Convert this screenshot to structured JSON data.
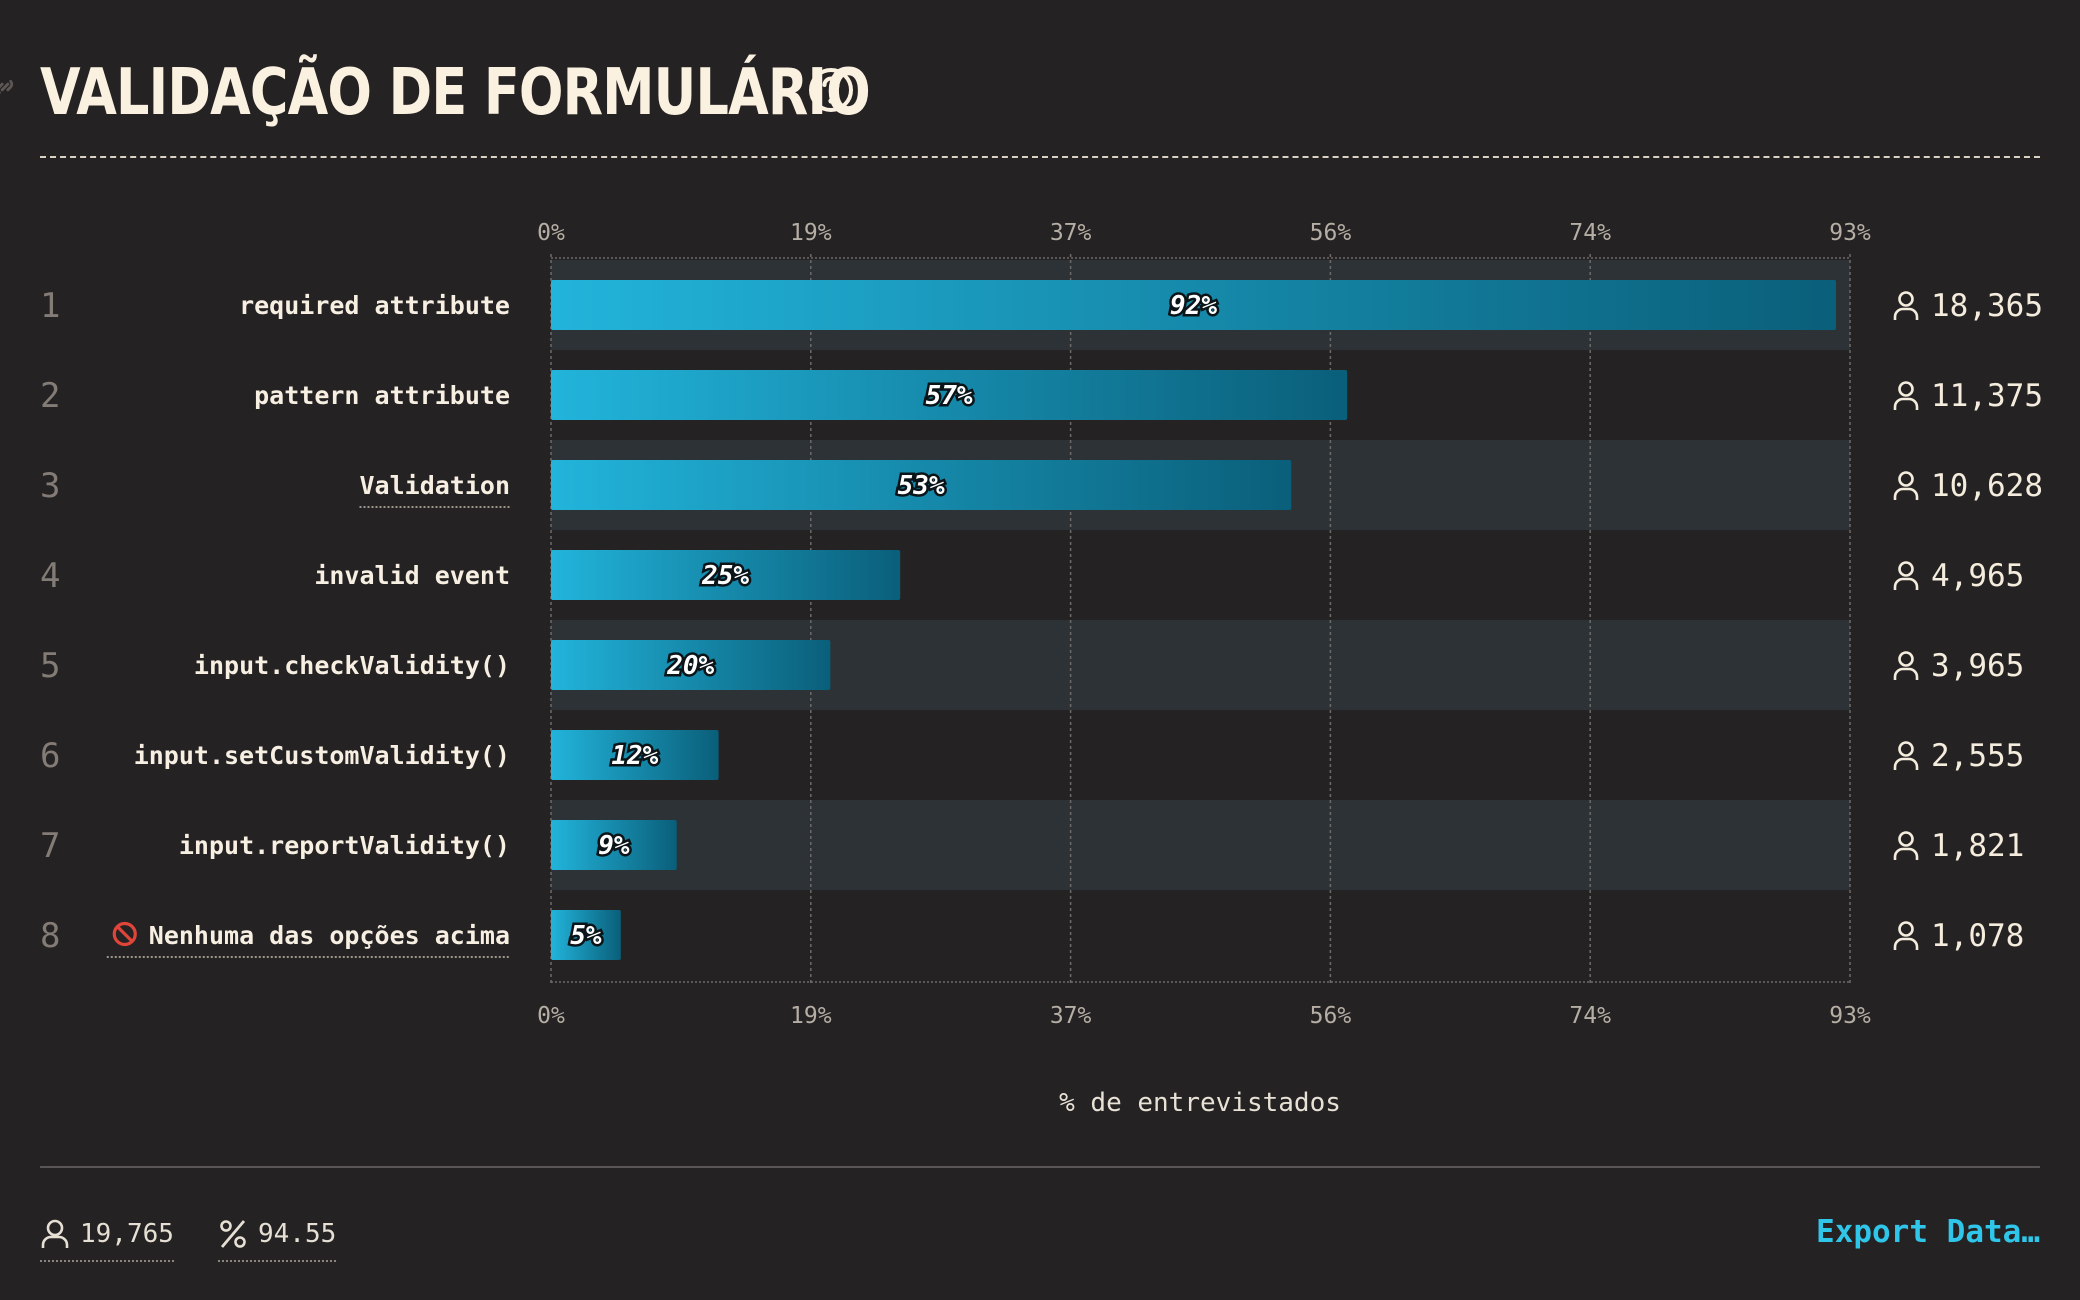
{
  "page": {
    "title": "VALIDAÇÃO DE FORMULÁRIO",
    "export_label": "Export Data…",
    "footer": {
      "respondents": "19,765",
      "percent": "94.55"
    }
  },
  "colors": {
    "bar_start": "#22b4db",
    "bar_end": "#0a5f7a",
    "accent": "#2fc6ea",
    "stripe": "#2c3235"
  },
  "chart_data": {
    "type": "bar",
    "orientation": "horizontal",
    "xlabel": "% de entrevistados",
    "xlim": [
      0,
      93
    ],
    "ticks": [
      "0%",
      "19%",
      "37%",
      "56%",
      "74%",
      "93%"
    ],
    "tick_values": [
      0,
      18.6,
      37.2,
      55.8,
      74.4,
      93
    ],
    "grid": true,
    "categories": [
      "required attribute",
      "pattern attribute",
      "Validation",
      "invalid event",
      "input.checkValidity()",
      "input.setCustomValidity()",
      "input.reportValidity()",
      "Nenhuma das opções acima"
    ],
    "values": [
      92,
      57,
      53,
      25,
      20,
      12,
      9,
      5
    ],
    "value_labels": [
      "92%",
      "57%",
      "53%",
      "25%",
      "20%",
      "12%",
      "9%",
      "5%"
    ],
    "counts": [
      "18,365",
      "11,375",
      "10,628",
      "4,965",
      "3,965",
      "2,555",
      "1,821",
      "1,078"
    ],
    "ranks": [
      "1",
      "2",
      "3",
      "4",
      "5",
      "6",
      "7",
      "8"
    ],
    "underlined": [
      false,
      false,
      true,
      false,
      false,
      false,
      false,
      true
    ],
    "prefix_icons": [
      "",
      "",
      "",
      "",
      "",
      "",
      "",
      "prohibited-icon"
    ]
  }
}
